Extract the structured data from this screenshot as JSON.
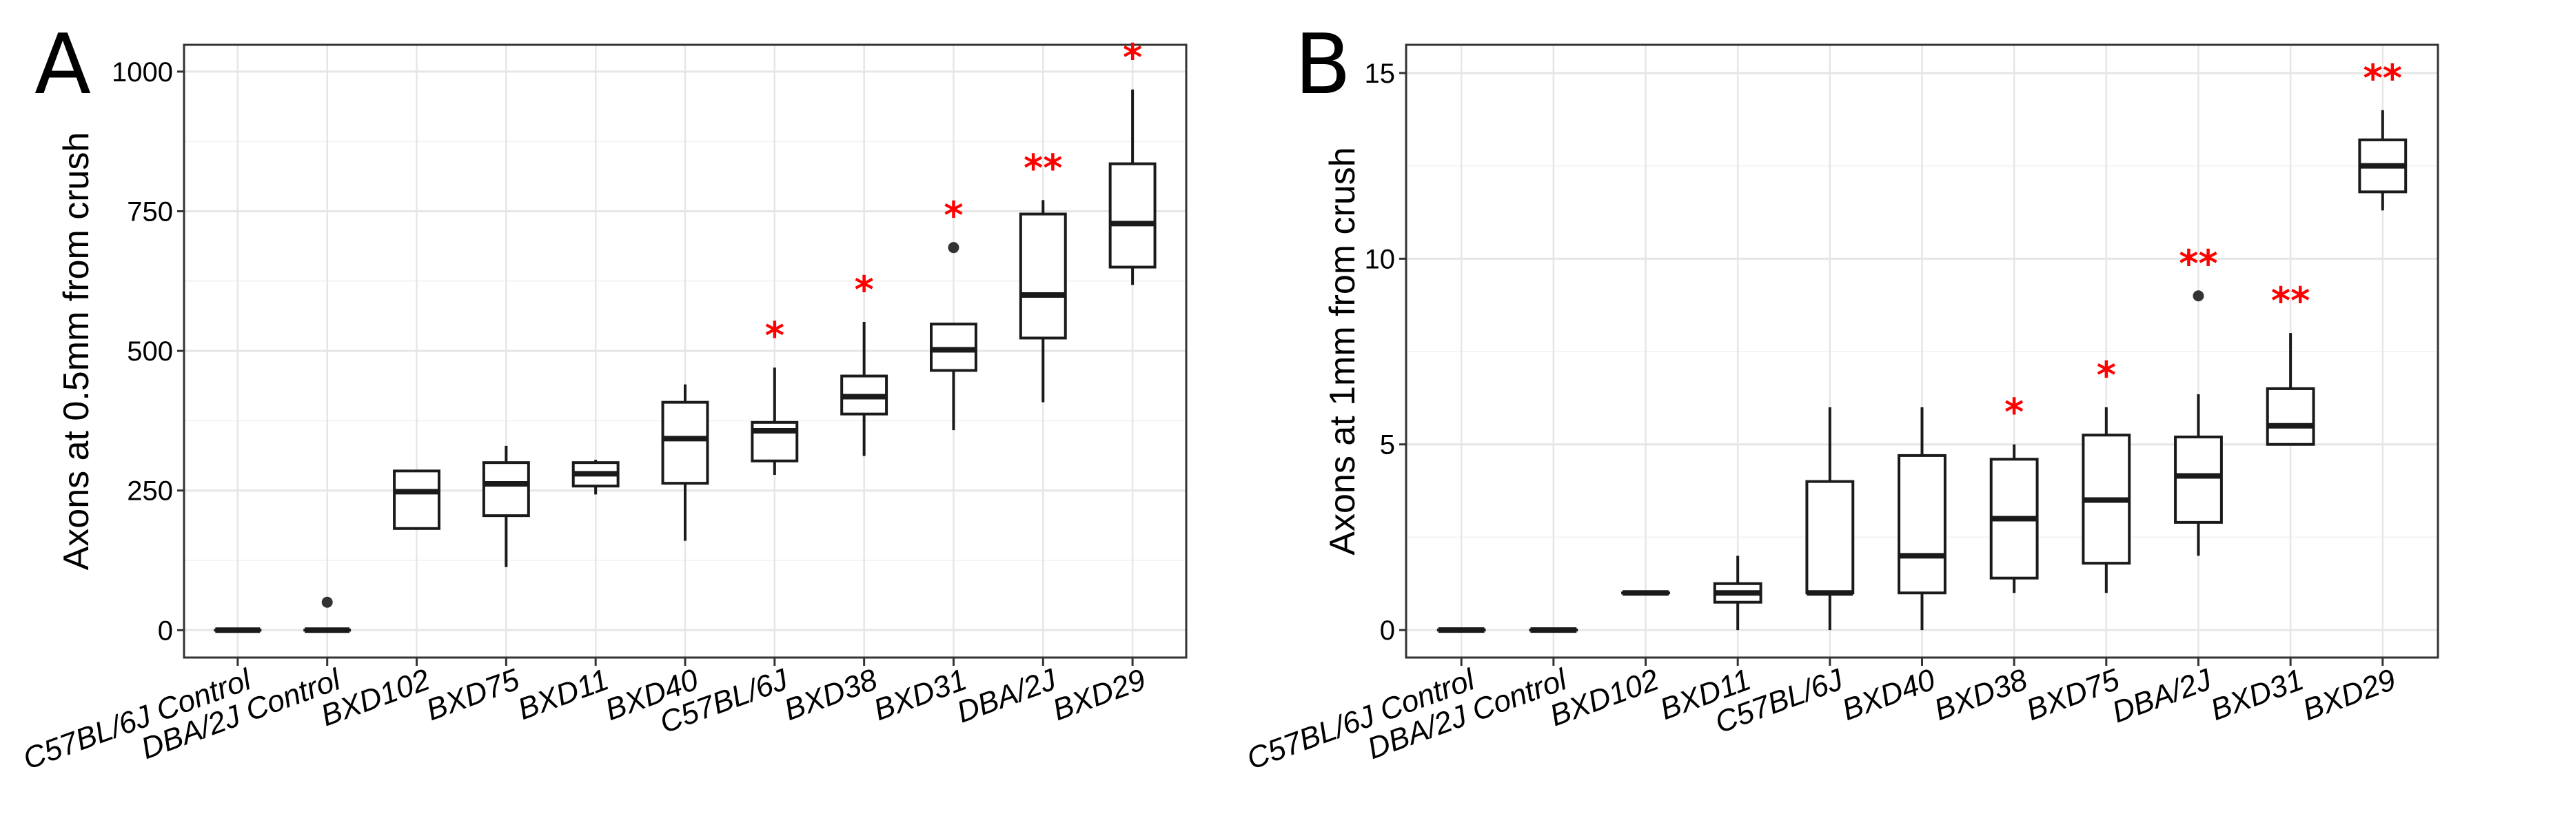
{
  "chart_data": [
    {
      "type": "box",
      "panel_label": "A",
      "title": "",
      "xlabel": "",
      "ylabel": "Axons at 0.5mm from crush",
      "ylim": [
        -49,
        1048
      ],
      "yticks": [
        0,
        250,
        500,
        750,
        1000
      ],
      "ytick_labels": [
        "0",
        "250",
        "500",
        "750",
        "1000"
      ],
      "grid": true,
      "significance_color": "#ff0000",
      "categories": [
        "C57BL/6J Control",
        "DBA/2J Control",
        "BXD102",
        "BXD75",
        "BXD11",
        "BXD40",
        "C57BL/6J",
        "BXD38",
        "BXD31",
        "DBA/2J",
        "BXD29"
      ],
      "boxes": [
        {
          "min": 0,
          "q1": 0,
          "median": 0,
          "q3": 0,
          "max": 0,
          "outliers": [],
          "sig": ""
        },
        {
          "min": 0,
          "q1": 0,
          "median": 0,
          "q3": 0,
          "max": 0,
          "outliers": [
            50
          ],
          "sig": ""
        },
        {
          "min": 180,
          "q1": 182,
          "median": 248,
          "q3": 285,
          "max": 285,
          "outliers": [],
          "sig": ""
        },
        {
          "min": 113,
          "q1": 205,
          "median": 262,
          "q3": 300,
          "max": 330,
          "outliers": [],
          "sig": ""
        },
        {
          "min": 243,
          "q1": 258,
          "median": 280,
          "q3": 300,
          "max": 305,
          "outliers": [],
          "sig": ""
        },
        {
          "min": 160,
          "q1": 263,
          "median": 343,
          "q3": 408,
          "max": 440,
          "outliers": [],
          "sig": ""
        },
        {
          "min": 278,
          "q1": 303,
          "median": 357,
          "q3": 372,
          "max": 470,
          "outliers": [],
          "sig": "*"
        },
        {
          "min": 312,
          "q1": 387,
          "median": 418,
          "q3": 455,
          "max": 552,
          "outliers": [],
          "sig": "*"
        },
        {
          "min": 358,
          "q1": 465,
          "median": 502,
          "q3": 548,
          "max": 548,
          "outliers": [
            685
          ],
          "sig": "*"
        },
        {
          "min": 408,
          "q1": 523,
          "median": 600,
          "q3": 745,
          "max": 770,
          "outliers": [],
          "sig": "**"
        },
        {
          "min": 618,
          "q1": 650,
          "median": 728,
          "q3": 835,
          "max": 968,
          "outliers": [],
          "sig": "*"
        }
      ]
    },
    {
      "type": "box",
      "panel_label": "B",
      "title": "",
      "xlabel": "",
      "ylabel": "Axons at 1mm from crush",
      "ylim": [
        -0.74,
        15.76
      ],
      "yticks": [
        0,
        5,
        10,
        15
      ],
      "ytick_labels": [
        "0",
        "5",
        "10",
        "15"
      ],
      "grid": true,
      "significance_color": "#ff0000",
      "categories": [
        "C57BL/6J Control",
        "DBA/2J Control",
        "BXD102",
        "BXD11",
        "C57BL/6J",
        "BXD40",
        "BXD38",
        "BXD75",
        "DBA/2J",
        "BXD31",
        "BXD29"
      ],
      "boxes": [
        {
          "min": 0,
          "q1": 0,
          "median": 0,
          "q3": 0,
          "max": 0,
          "outliers": [],
          "sig": ""
        },
        {
          "min": 0,
          "q1": 0,
          "median": 0,
          "q3": 0,
          "max": 0,
          "outliers": [],
          "sig": ""
        },
        {
          "min": 1,
          "q1": 1,
          "median": 1,
          "q3": 1,
          "max": 1,
          "outliers": [],
          "sig": ""
        },
        {
          "min": 0,
          "q1": 0.75,
          "median": 1,
          "q3": 1.25,
          "max": 2,
          "outliers": [],
          "sig": ""
        },
        {
          "min": 0,
          "q1": 1,
          "median": 1,
          "q3": 4,
          "max": 6,
          "outliers": [],
          "sig": ""
        },
        {
          "min": 0,
          "q1": 1,
          "median": 2,
          "q3": 4.7,
          "max": 6,
          "outliers": [],
          "sig": ""
        },
        {
          "min": 1,
          "q1": 1.4,
          "median": 3,
          "q3": 4.6,
          "max": 5,
          "outliers": [],
          "sig": "*"
        },
        {
          "min": 1,
          "q1": 1.8,
          "median": 3.5,
          "q3": 5.25,
          "max": 6,
          "outliers": [],
          "sig": "*"
        },
        {
          "min": 2,
          "q1": 2.9,
          "median": 4.15,
          "q3": 5.2,
          "max": 6.35,
          "outliers": [
            9
          ],
          "sig": "**"
        },
        {
          "min": 5,
          "q1": 5,
          "median": 5.5,
          "q3": 6.5,
          "max": 8,
          "outliers": [],
          "sig": "**"
        },
        {
          "min": 11.3,
          "q1": 11.8,
          "median": 12.5,
          "q3": 13.2,
          "max": 14,
          "outliers": [],
          "sig": "**"
        }
      ]
    }
  ]
}
